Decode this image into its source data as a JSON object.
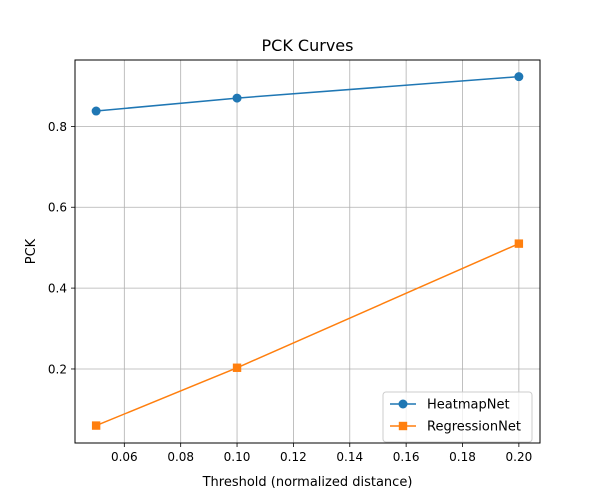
{
  "chart_data": {
    "type": "line",
    "title": "PCK Curves",
    "xlabel": "Threshold (normalized distance)",
    "ylabel": "PCK",
    "x": [
      0.05,
      0.1,
      0.2
    ],
    "xlim": [
      0.0425,
      0.2075
    ],
    "ylim": [
      0.0169,
      0.9642
    ],
    "xticks": [
      0.06,
      0.08,
      0.1,
      0.12,
      0.14,
      0.16,
      0.18,
      0.2
    ],
    "xtick_labels": [
      "0.06",
      "0.08",
      "0.10",
      "0.12",
      "0.14",
      "0.16",
      "0.18",
      "0.20"
    ],
    "yticks": [
      0.2,
      0.4,
      0.6,
      0.8
    ],
    "ytick_labels": [
      "0.2",
      "0.4",
      "0.6",
      "0.8"
    ],
    "grid": true,
    "legend_position": "lower right",
    "series": [
      {
        "name": "HeatmapNet",
        "values": [
          0.838,
          0.87,
          0.923
        ],
        "color": "#1f77b4",
        "marker": "circle"
      },
      {
        "name": "RegressionNet",
        "values": [
          0.06,
          0.203,
          0.51
        ],
        "color": "#ff7f0e",
        "marker": "square"
      }
    ]
  }
}
